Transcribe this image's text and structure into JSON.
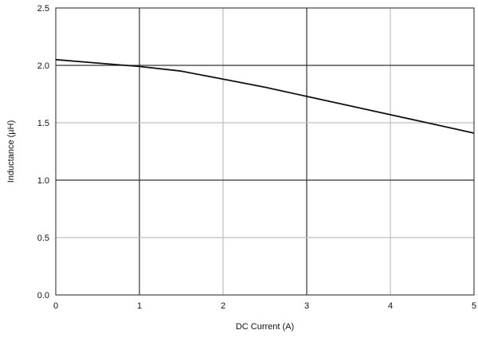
{
  "chart_data": {
    "type": "line",
    "title": "",
    "xlabel": "DC Current (A)",
    "ylabel": "Inductance (µH)",
    "xlim": [
      0,
      5
    ],
    "ylim": [
      0,
      2.5
    ],
    "xticks": [
      0,
      1,
      2,
      3,
      4,
      5
    ],
    "yticks": [
      0,
      0.5,
      1,
      1.5,
      2,
      2.5
    ],
    "xtick_labels": [
      "0",
      "1",
      "2",
      "3",
      "4",
      "5"
    ],
    "ytick_labels": [
      "0.0",
      "0.5",
      "1.0",
      "1.5",
      "2.0",
      "2.5"
    ],
    "grid": true,
    "series": [
      {
        "x": [
          0,
          0.5,
          1,
          1.5,
          2,
          2.5,
          3,
          3.5,
          4,
          4.5,
          5
        ],
        "y": [
          2.05,
          2.02,
          1.99,
          1.95,
          1.88,
          1.81,
          1.73,
          1.65,
          1.57,
          1.49,
          1.41
        ]
      }
    ],
    "colors": {
      "line": "#111111",
      "grid_dark": "#333333",
      "grid_light": "#bfbfbf"
    }
  }
}
